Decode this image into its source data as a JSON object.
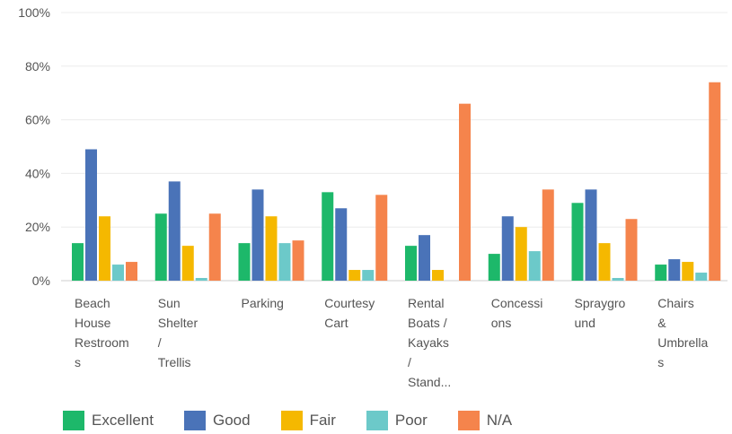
{
  "chart_data": {
    "type": "bar",
    "categories": [
      [
        "Beach",
        "House",
        "Restroom",
        "s"
      ],
      [
        "Sun",
        "Shelter",
        "/",
        "Trellis"
      ],
      [
        "Parking"
      ],
      [
        "Courtesy",
        "Cart"
      ],
      [
        "Rental",
        "Boats /",
        "Kayaks",
        "/",
        "Stand..."
      ],
      [
        "Concessi",
        "ons"
      ],
      [
        "Spraygro",
        "und"
      ],
      [
        "Chairs",
        "&",
        "Umbrella",
        "s"
      ]
    ],
    "series": [
      {
        "name": "Excellent",
        "color": "#1db86a",
        "values": [
          14,
          25,
          14,
          33,
          13,
          10,
          29,
          6
        ]
      },
      {
        "name": "Good",
        "color": "#4a73b8",
        "values": [
          49,
          37,
          34,
          27,
          17,
          24,
          34,
          8
        ]
      },
      {
        "name": "Fair",
        "color": "#f5b800",
        "values": [
          24,
          13,
          24,
          4,
          4,
          20,
          14,
          7
        ]
      },
      {
        "name": "Poor",
        "color": "#6cc9c9",
        "values": [
          6,
          1,
          14,
          4,
          0,
          11,
          1,
          3
        ]
      },
      {
        "name": "N/A",
        "color": "#f5844c",
        "values": [
          7,
          25,
          15,
          32,
          66,
          34,
          23,
          74
        ]
      }
    ],
    "yticks": [
      "0%",
      "20%",
      "40%",
      "60%",
      "80%",
      "100%"
    ],
    "ylim": [
      0,
      100
    ],
    "grid": true,
    "legend_position": "bottom-left"
  }
}
